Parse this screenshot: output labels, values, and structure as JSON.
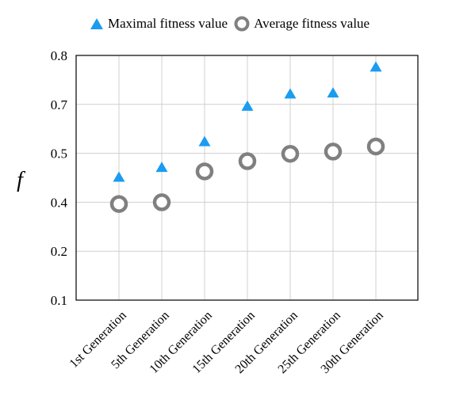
{
  "chart_data": {
    "type": "scatter",
    "categories": [
      "1st Generation",
      "5th Generation",
      "10th Generation",
      "15th Generation",
      "20th Generation",
      "25th Generation",
      "30th Generation"
    ],
    "series": [
      {
        "name": "Maximal fitness value",
        "marker": "triangle",
        "color": "#1a9cf0",
        "values": [
          0.45,
          0.47,
          0.545,
          0.69,
          0.72,
          0.722,
          0.775
        ]
      },
      {
        "name": "Average fitness value",
        "marker": "ring",
        "color": "#808080",
        "values": [
          0.393,
          0.4,
          0.463,
          0.484,
          0.499,
          0.507,
          0.528
        ]
      }
    ],
    "y_ticks": [
      "0.1",
      "0.2",
      "0.4",
      "0.5",
      "0.7",
      "0.8"
    ],
    "ylim": [
      0.1,
      0.8
    ],
    "ylabel": "f",
    "xlabel": "",
    "grid": true,
    "legend": "top"
  }
}
